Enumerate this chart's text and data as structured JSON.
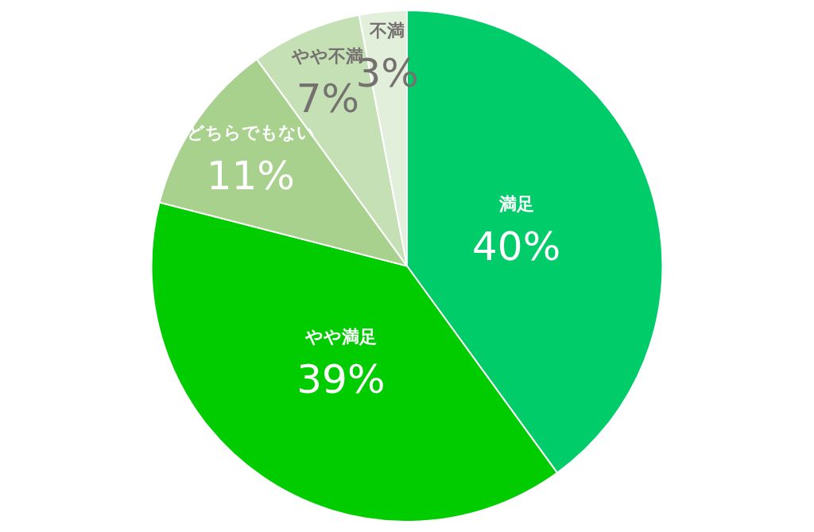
{
  "chart_data": {
    "type": "pie",
    "categories": [
      "満足",
      "やや満足",
      "どちらでもない",
      "やや不満",
      "不満"
    ],
    "values": [
      40,
      39,
      11,
      7,
      3
    ],
    "colors": [
      "#00cc6a",
      "#00cc00",
      "#a9d18e",
      "#c5e0b4",
      "#e2efda"
    ],
    "value_labels": [
      "40%",
      "39%",
      "11%",
      "7%",
      "3%"
    ],
    "legend": false
  }
}
